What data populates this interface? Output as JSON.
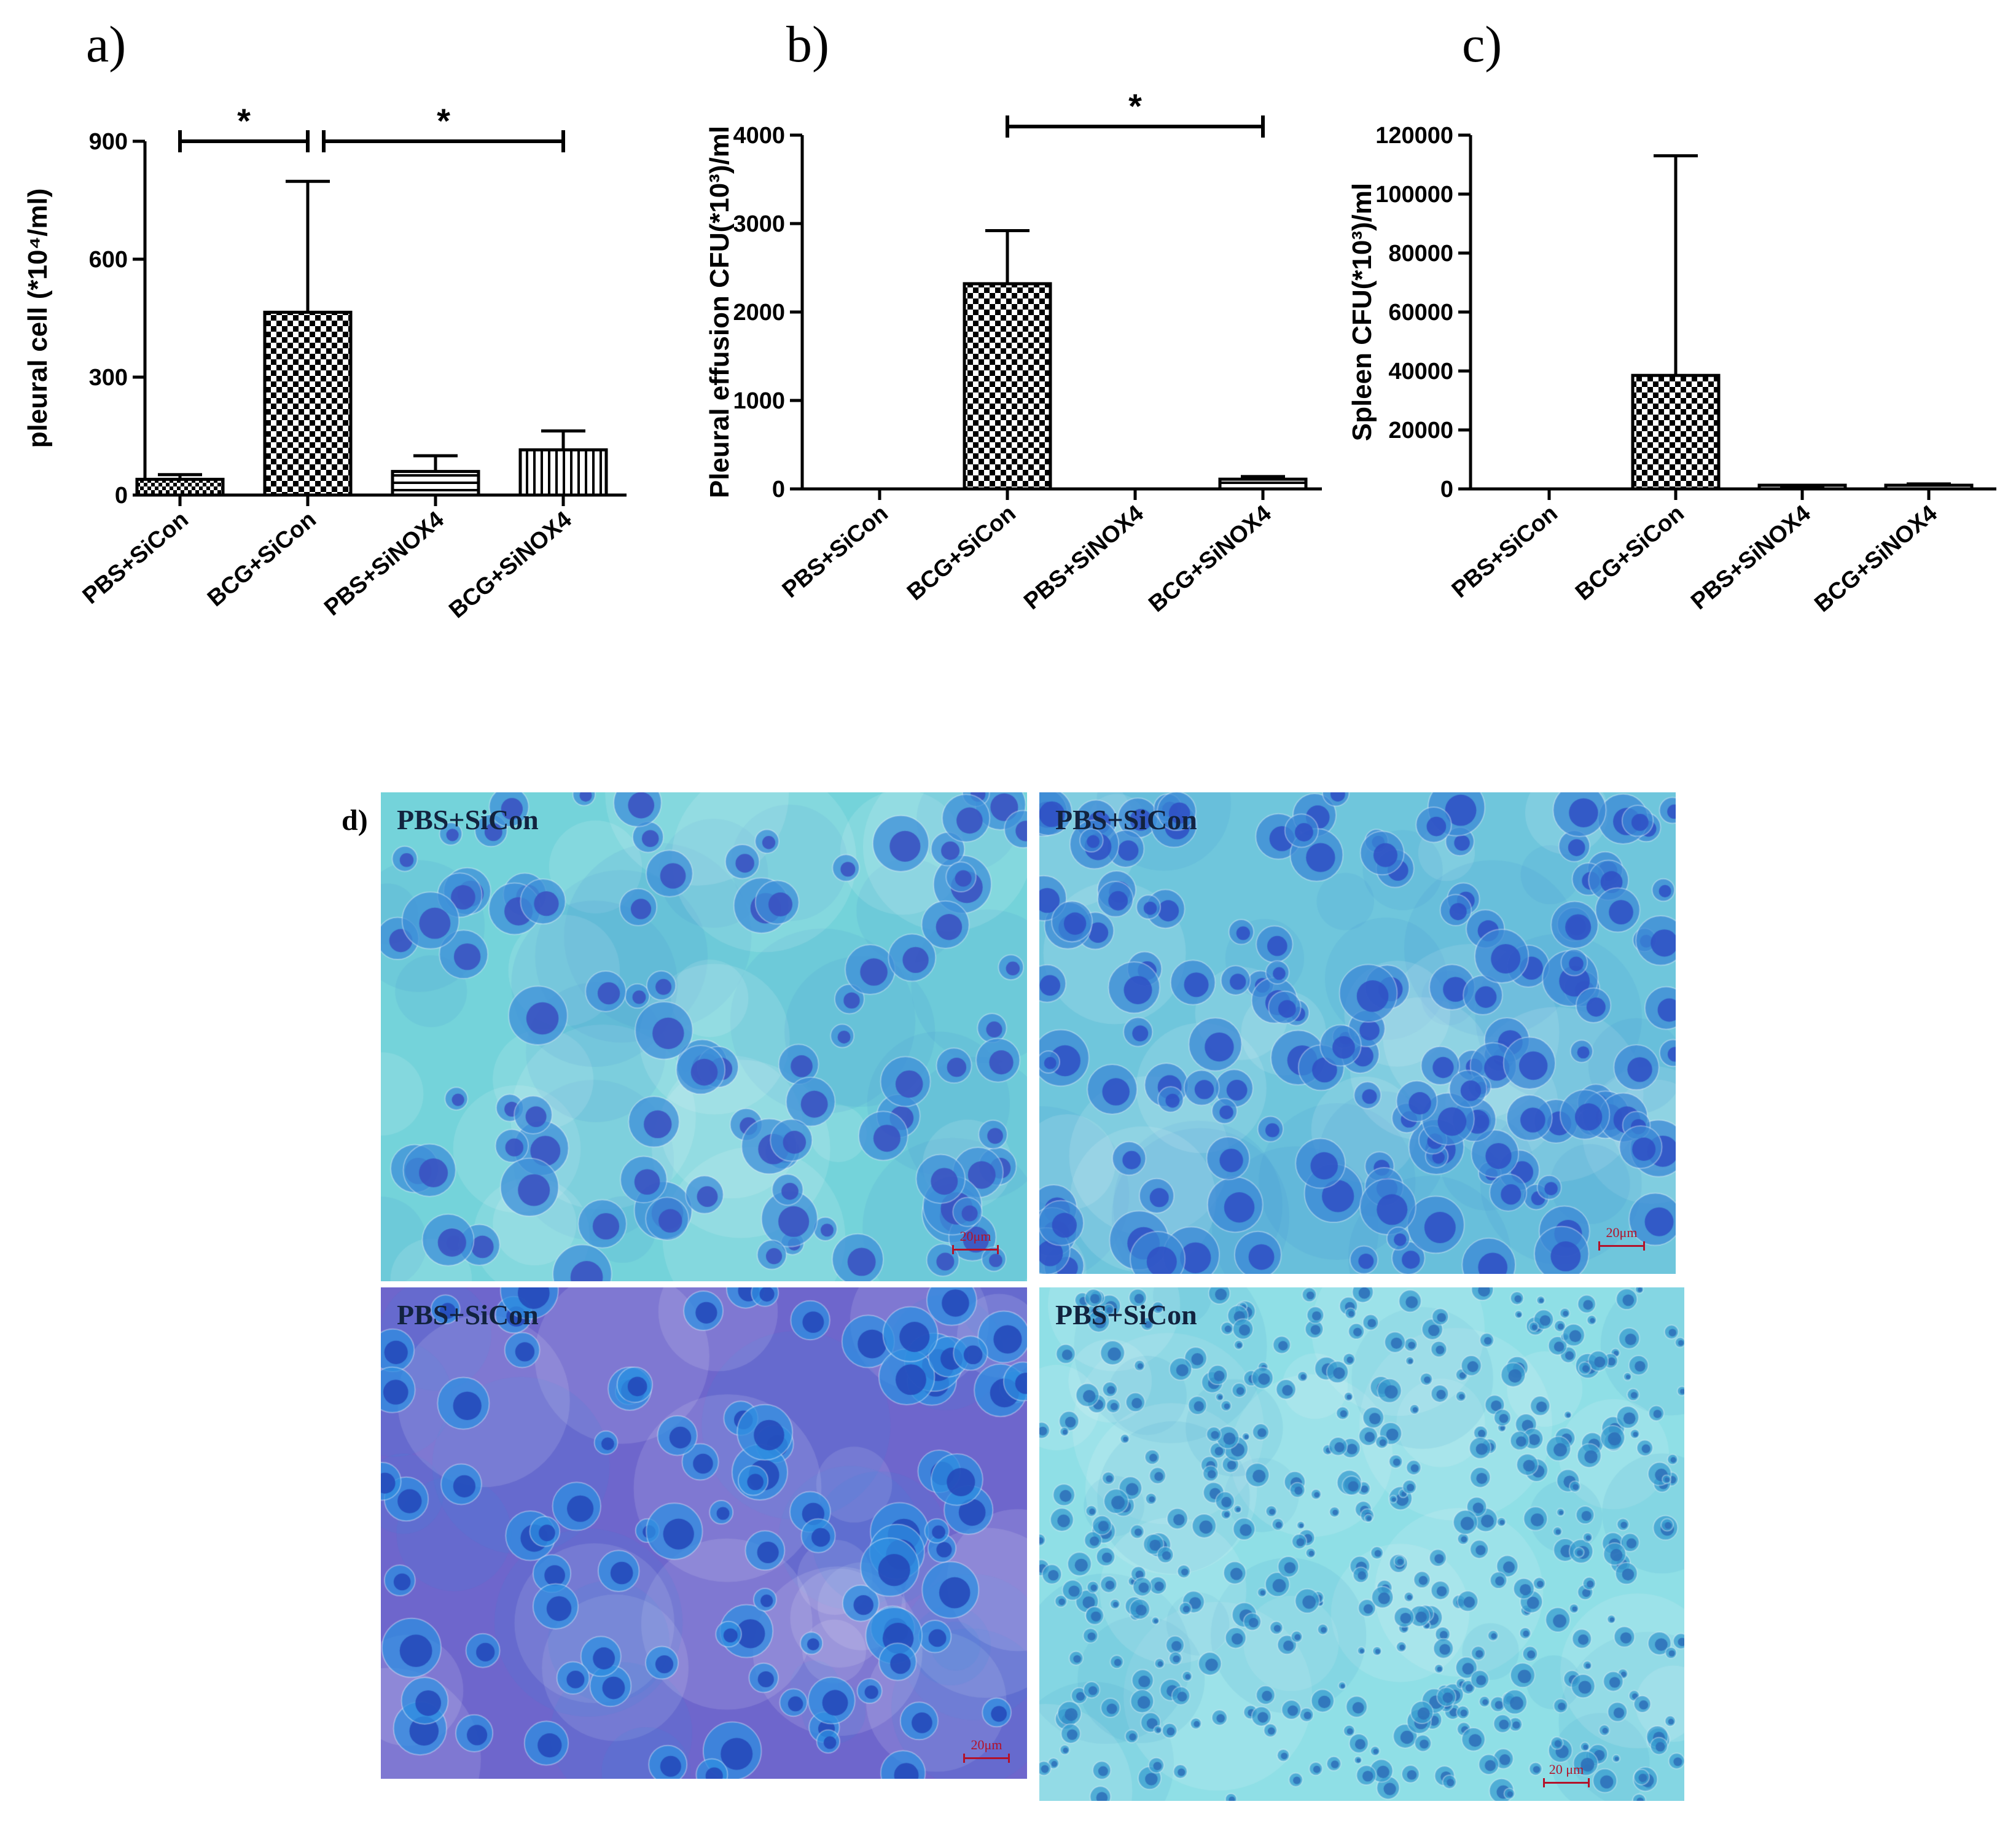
{
  "panel_d": {
    "label": "d)",
    "images": [
      {
        "label": "PBS+SiCon",
        "scale_bar": "20μm",
        "colors": {
          "bg": "#74d3da",
          "cell": "#3e8fd8",
          "nucleus": "#3a4fbf"
        }
      },
      {
        "label": "PBS+SiCon",
        "scale_bar": "20μm",
        "colors": {
          "bg": "#6fc6dc",
          "cell": "#3b88d6",
          "nucleus": "#2f4fc4"
        }
      },
      {
        "label": "PBS+SiCon",
        "scale_bar": "20μm",
        "colors": {
          "bg": "#6e66cc",
          "cell": "#2f8ee0",
          "nucleus": "#2346b8"
        }
      },
      {
        "label": "PBS+SiCon",
        "scale_bar": "20 μm",
        "colors": {
          "bg": "#8fdfe6",
          "cell": "#3a9ed0",
          "nucleus": "#2d6fb8"
        }
      }
    ]
  },
  "chart_data": [
    {
      "panel": "a)",
      "type": "bar",
      "ylabel": "pleural cell (*10⁴/ml)",
      "categories": [
        "PBS+SiCon",
        "BCG+SiCon",
        "PBS+SiNOX4",
        "BCG+SiNOX4"
      ],
      "values": [
        40,
        465,
        60,
        115
      ],
      "error_upper": [
        52,
        798,
        100,
        163
      ],
      "fill_patterns": [
        "checker-small",
        "checker-large",
        "horizontal-lines",
        "vertical-lines"
      ],
      "ylim": [
        0,
        900
      ],
      "yticks": [
        "0",
        "300",
        "600",
        "900"
      ],
      "significance": [
        {
          "from": 0,
          "to": 1,
          "label": "*"
        },
        {
          "from": 1,
          "to": 3,
          "label": "*"
        }
      ]
    },
    {
      "panel": "b)",
      "type": "bar",
      "ylabel": "Pleural effusion CFU(*10³)/ml",
      "categories": [
        "PBS+SiCon",
        "BCG+SiCon",
        "PBS+SiNOX4",
        "BCG+SiNOX4"
      ],
      "values": [
        0,
        2320,
        0,
        110
      ],
      "error_upper": [
        0,
        2920,
        0,
        140
      ],
      "fill_patterns": [
        "none",
        "checker-large",
        "none",
        "horizontal-lines"
      ],
      "ylim": [
        0,
        4000
      ],
      "yticks": [
        "0",
        "1000",
        "2000",
        "3000",
        "4000"
      ],
      "significance": [
        {
          "from": 1,
          "to": 3,
          "label": "*"
        }
      ]
    },
    {
      "panel": "c)",
      "type": "bar",
      "ylabel": "Spleen CFU(*10³)/ml",
      "categories": [
        "PBS+SiCon",
        "BCG+SiCon",
        "PBS+SiNOX4",
        "BCG+SiNOX4"
      ],
      "values": [
        0,
        38500,
        300,
        1200
      ],
      "error_upper": [
        0,
        113000,
        400,
        1700
      ],
      "fill_patterns": [
        "none",
        "checker-large",
        "none",
        "horizontal-lines"
      ],
      "ylim": [
        0,
        120000
      ],
      "yticks": [
        "0",
        "20000",
        "40000",
        "60000",
        "80000",
        "100000",
        "120000"
      ],
      "significance": []
    }
  ]
}
